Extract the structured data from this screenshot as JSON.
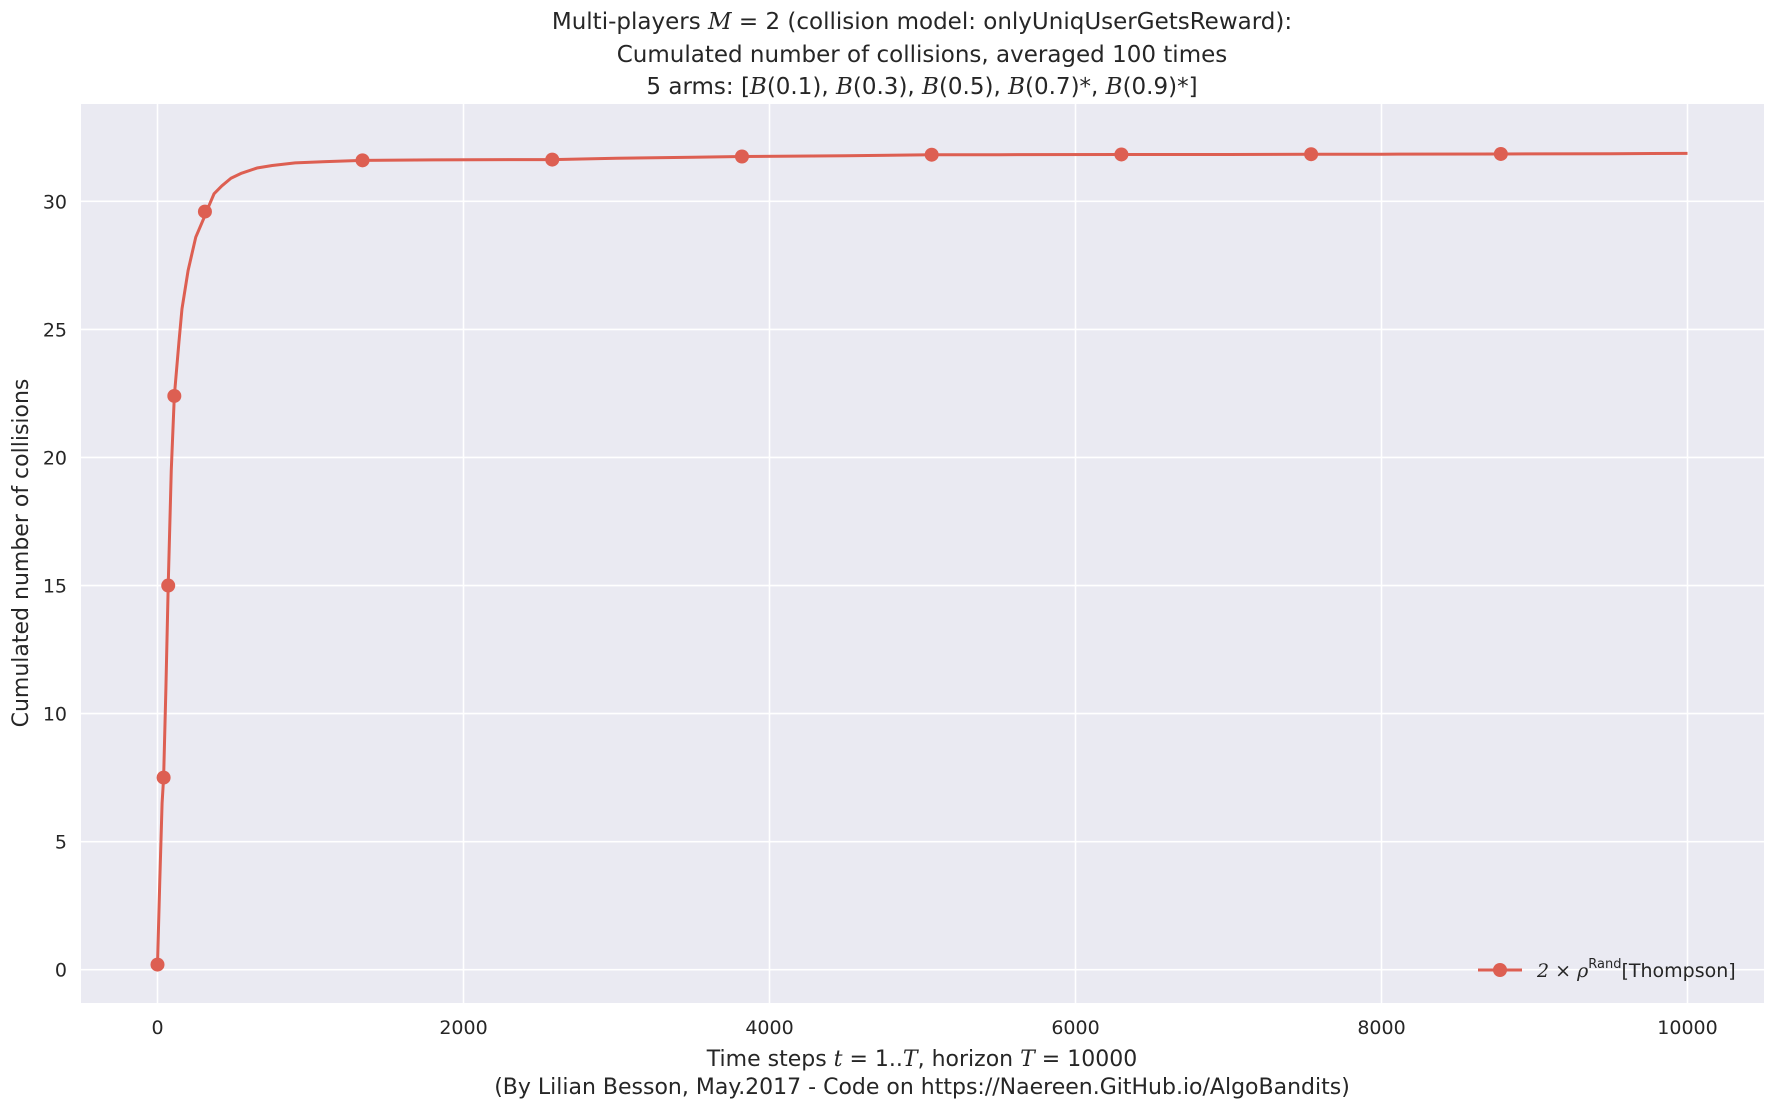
{
  "chart_data": {
    "type": "line",
    "title_lines": [
      "Multi-players M = 2 (collision model: onlyUniqUserGetsReward):",
      "Cumulated number of collisions, averaged 100 times",
      "5 arms: [B(0.1), B(0.3), B(0.5), B(0.7)*, B(0.9)*]"
    ],
    "xlabel": "Time steps t = 1..T, horizon T = 10000",
    "credit": "(By Lilian Besson, May.2017 - Code on https://Naereen.GitHub.io/AlgoBandits)",
    "ylabel": "Cumulated number of collisions",
    "xlim": [
      -500,
      10500
    ],
    "ylim": [
      -1.3,
      33.8
    ],
    "x_ticks": [
      0,
      2000,
      4000,
      6000,
      8000,
      10000
    ],
    "y_ticks": [
      0,
      5,
      10,
      15,
      20,
      25,
      30
    ],
    "grid": true,
    "legend_position": "lower-right",
    "series": [
      {
        "name": "2 × ρ^Rand[Thompson]",
        "color": "#dd5f52",
        "curve": [
          [
            0,
            0.2
          ],
          [
            15,
            3.5
          ],
          [
            30,
            6.5
          ],
          [
            40,
            7.5
          ],
          [
            55,
            11
          ],
          [
            70,
            15.0
          ],
          [
            90,
            19.5
          ],
          [
            110,
            22.4
          ],
          [
            140,
            24.5
          ],
          [
            160,
            25.8
          ],
          [
            200,
            27.3
          ],
          [
            250,
            28.6
          ],
          [
            300,
            29.3
          ],
          [
            320,
            29.6
          ],
          [
            370,
            30.3
          ],
          [
            420,
            30.6
          ],
          [
            480,
            30.9
          ],
          [
            550,
            31.1
          ],
          [
            650,
            31.3
          ],
          [
            750,
            31.4
          ],
          [
            900,
            31.5
          ],
          [
            1100,
            31.55
          ],
          [
            1340,
            31.6
          ],
          [
            1800,
            31.62
          ],
          [
            2580,
            31.63
          ],
          [
            3000,
            31.68
          ],
          [
            3500,
            31.72
          ],
          [
            3820,
            31.75
          ],
          [
            4500,
            31.78
          ],
          [
            5060,
            31.82
          ],
          [
            5500,
            31.82
          ],
          [
            6300,
            31.83
          ],
          [
            7000,
            31.83
          ],
          [
            7540,
            31.84
          ],
          [
            8000,
            31.84
          ],
          [
            8780,
            31.85
          ],
          [
            9500,
            31.86
          ],
          [
            10000,
            31.87
          ]
        ],
        "markers": [
          [
            0,
            0.2
          ],
          [
            40,
            7.5
          ],
          [
            70,
            15.0
          ],
          [
            110,
            22.4
          ],
          [
            310,
            29.6
          ],
          [
            1340,
            31.6
          ],
          [
            2580,
            31.63
          ],
          [
            3820,
            31.75
          ],
          [
            5060,
            31.82
          ],
          [
            6300,
            31.83
          ],
          [
            7540,
            31.84
          ],
          [
            8780,
            31.85
          ]
        ]
      }
    ]
  }
}
